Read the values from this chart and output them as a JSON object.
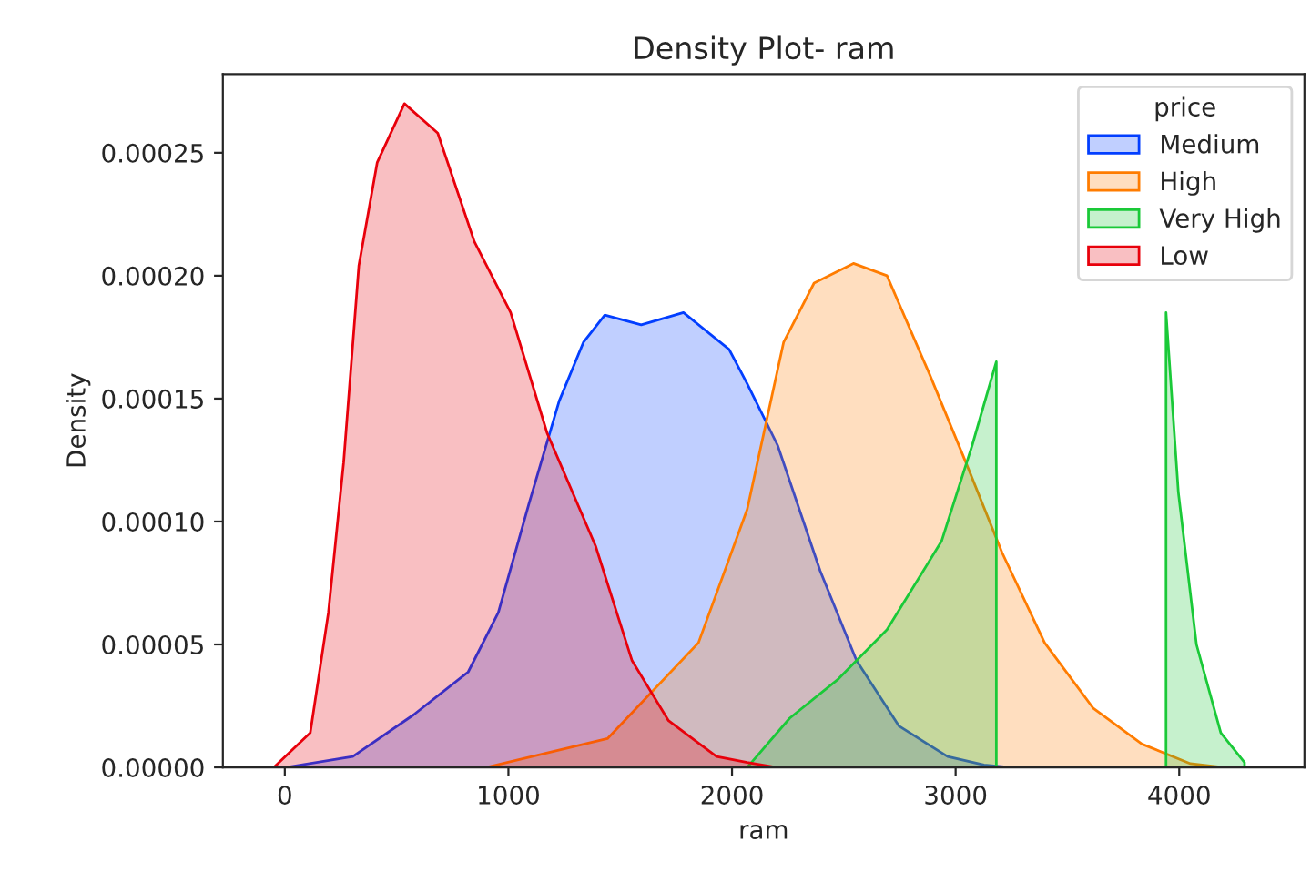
{
  "chart_data": {
    "type": "area",
    "title": "Density Plot- ram",
    "xlabel": "ram",
    "ylabel": "Density",
    "legend_title": "price",
    "legend": "top right",
    "grid": false,
    "xlim": [
      -277,
      4560
    ],
    "xticks": [
      0,
      1000,
      2000,
      3000,
      4000
    ],
    "ylim": [
      0,
      0.000282
    ],
    "yticks": [
      {
        "value": 0,
        "label": "0.00000"
      },
      {
        "value": 5e-05,
        "label": "0.00005"
      },
      {
        "value": 0.0001,
        "label": "0.00010"
      },
      {
        "value": 0.00015,
        "label": "0.00015"
      },
      {
        "value": 0.0002,
        "label": "0.00020"
      },
      {
        "value": 0.00025,
        "label": "0.00025"
      }
    ],
    "series": [
      {
        "name": "Medium",
        "color": "#023eff",
        "x": [
          5,
          304,
          576,
          820,
          955,
          1091,
          1227,
          1336,
          1431,
          1594,
          1783,
          1987,
          2068,
          2204,
          2394,
          2557,
          2747,
          2964,
          3127,
          3250
        ],
        "values": [
          0,
          4.4e-06,
          2.14e-05,
          3.88e-05,
          6.3e-05,
          0.000107,
          0.000149,
          0.000173,
          0.000184,
          0.00018,
          0.000185,
          0.00017,
          0.000156,
          0.000131,
          8e-05,
          4.34e-05,
          1.68e-05,
          4.4e-06,
          1e-06,
          0
        ]
      },
      {
        "name": "High",
        "color": "#ff7c00",
        "x": [
          901,
          1443,
          1850,
          2068,
          2231,
          2367,
          2543,
          2693,
          2883,
          3046,
          3208,
          3398,
          3616,
          3833,
          4050,
          4200
        ],
        "values": [
          0,
          1.17e-05,
          5.07e-05,
          0.000105,
          0.000173,
          0.000197,
          0.000205,
          0.0002,
          0.00016,
          0.000124,
          8.73e-05,
          5.07e-05,
          2.4e-05,
          9.5e-06,
          1.5e-06,
          0
        ]
      },
      {
        "name": "Very High",
        "color": "#1ac938",
        "x": [
          2068,
          2258,
          2476,
          2693,
          2937,
          3074,
          3182,
          3273,
          3600,
          3750,
          3860,
          3941,
          3996,
          4077,
          4186,
          4292
        ],
        "values": [
          0,
          2e-05,
          3.6e-05,
          5.6e-05,
          9.2e-05,
          0.000131,
          0.000165,
          null,
          null,
          null,
          null,
          0.000185,
          0.000112,
          5e-05,
          1.4e-05,
          2e-06
        ]
      },
      {
        "name": "Low",
        "color": "#e8000b",
        "x": [
          -49,
          114,
          195,
          263,
          331,
          413,
          535,
          684,
          847,
          1010,
          1173,
          1390,
          1553,
          1716,
          1931,
          2068,
          2200
        ],
        "values": [
          0,
          1.41e-05,
          6.3e-05,
          0.000124,
          0.000204,
          0.000246,
          0.00027,
          0.000258,
          0.000214,
          0.000185,
          0.000136,
          9e-05,
          4.34e-05,
          1.9e-05,
          4.4e-06,
          2e-06,
          0
        ]
      }
    ]
  }
}
